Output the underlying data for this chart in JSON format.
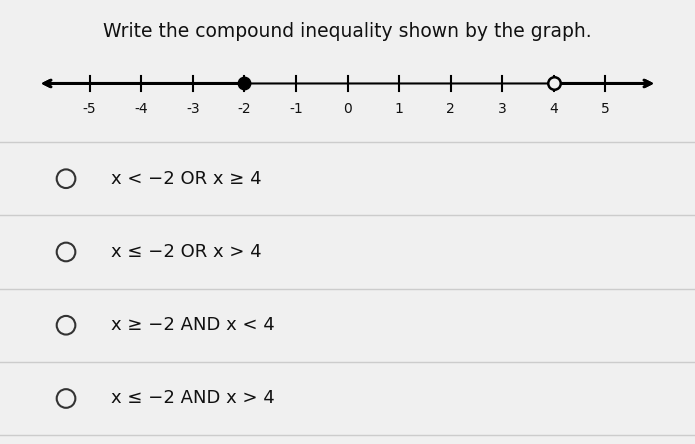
{
  "title": "Write the compound inequality shown by the graph.",
  "bg_color": "#f0f0f0",
  "number_line": {
    "tick_labels": [
      -5,
      -4,
      -3,
      -2,
      -1,
      0,
      1,
      2,
      3,
      4,
      5
    ],
    "filled_dot": -2,
    "open_dot": 4
  },
  "options": [
    "x < −2 OR x ≥ 4",
    "x ≤ −2 OR x > 4",
    "x ≥ −2 AND x < 4",
    "x ≤ −2 AND x > 4"
  ],
  "divider_color": "#cccccc",
  "circle_color": "#333333",
  "text_color": "#111111",
  "title_color": "#111111"
}
